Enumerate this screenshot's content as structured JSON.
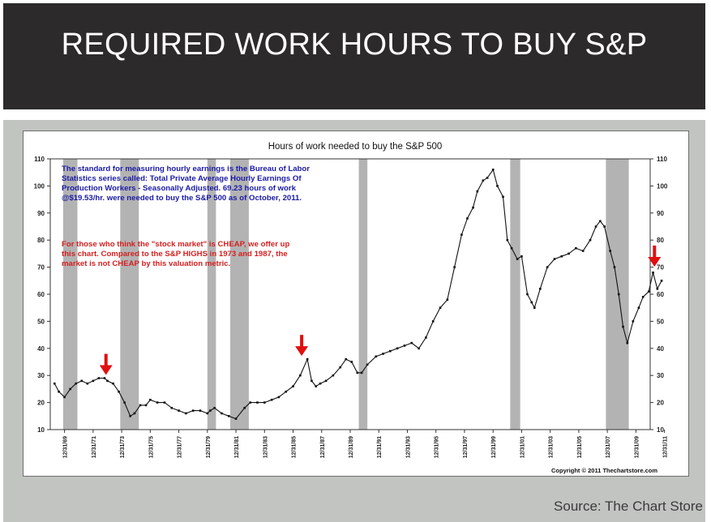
{
  "slide": {
    "title": "REQUIRED WORK HOURS TO BUY S&P",
    "source": "Source: The Chart Store"
  },
  "colors": {
    "banner": "#2d2a2b",
    "panel": "#c2c4c2",
    "recession": "#b3b3b3",
    "note_blue": "#1a1aa6",
    "note_red": "#d42020",
    "arrow": "#e01010",
    "line": "#111111"
  },
  "chart_data": {
    "type": "line",
    "title": "Hours of work needed to buy the S&P 500",
    "ylim": [
      10,
      110
    ],
    "xlim": [
      1969.0,
      2011.0
    ],
    "y_ticks": [
      10,
      20,
      30,
      40,
      50,
      60,
      70,
      80,
      90,
      100,
      110
    ],
    "x_tick_labels": [
      "12/31/69",
      "12/31/71",
      "12/31/73",
      "12/31/75",
      "12/31/77",
      "12/31/79",
      "12/31/81",
      "12/31/83",
      "12/31/85",
      "12/31/87",
      "12/31/89",
      "12/31/91",
      "12/31/93",
      "12/31/95",
      "12/31/97",
      "12/31/99",
      "12/31/01",
      "12/31/03",
      "12/31/05",
      "12/31/07",
      "12/31/09",
      "12/31/11"
    ],
    "x_tick_years": [
      1970,
      1972,
      1974,
      1976,
      1978,
      1980,
      1982,
      1984,
      1986,
      1988,
      1990,
      1992,
      1994,
      1996,
      1998,
      2000,
      2002,
      2004,
      2006,
      2008,
      2010,
      2012
    ],
    "recessions": [
      [
        1969.9,
        1970.9
      ],
      [
        1973.9,
        1975.2
      ],
      [
        1980.0,
        1980.6
      ],
      [
        1981.6,
        1982.9
      ],
      [
        1990.6,
        1991.2
      ],
      [
        2001.2,
        2001.9
      ],
      [
        2007.9,
        2009.5
      ]
    ],
    "series": [
      {
        "x": [
          1969.3,
          1969.6,
          1970.0,
          1970.4,
          1970.8,
          1971.2,
          1971.6,
          1972.0,
          1972.4,
          1972.8,
          1973.0,
          1973.4,
          1973.8,
          1974.2,
          1974.6,
          1974.9,
          1975.3,
          1975.7,
          1976.0,
          1976.5,
          1977.0,
          1977.5,
          1978.0,
          1978.5,
          1979.0,
          1979.5,
          1980.0,
          1980.2,
          1980.5,
          1981.0,
          1981.5,
          1982.0,
          1982.6,
          1983.0,
          1983.5,
          1984.0,
          1984.5,
          1985.0,
          1985.5,
          1986.0,
          1986.5,
          1987.0,
          1987.3,
          1987.6,
          1987.9,
          1988.3,
          1988.8,
          1989.3,
          1989.7,
          1990.1,
          1990.5,
          1990.8,
          1991.2,
          1991.8,
          1992.3,
          1992.8,
          1993.3,
          1993.8,
          1994.3,
          1994.8,
          1995.3,
          1995.8,
          1996.3,
          1996.8,
          1997.3,
          1997.8,
          1998.2,
          1998.6,
          1998.9,
          1999.3,
          1999.6,
          2000.0,
          2000.3,
          2000.7,
          2001.0,
          2001.3,
          2001.7,
          2002.0,
          2002.4,
          2002.7,
          2002.9,
          2003.3,
          2003.8,
          2004.3,
          2004.8,
          2005.3,
          2005.8,
          2006.3,
          2006.8,
          2007.2,
          2007.5,
          2007.8,
          2008.2,
          2008.5,
          2008.8,
          2009.1,
          2009.4,
          2009.8,
          2010.2,
          2010.5,
          2010.9,
          2011.2,
          2011.5,
          2011.8
        ],
        "y": [
          27,
          24,
          22,
          25,
          27,
          28,
          27,
          28,
          29,
          29,
          28,
          27,
          24,
          20,
          15,
          16,
          19,
          19,
          21,
          20,
          20,
          18,
          17,
          16,
          17,
          17,
          16,
          17,
          18,
          16,
          15,
          14,
          18,
          20,
          20,
          20,
          21,
          22,
          24,
          26,
          30,
          36,
          28,
          26,
          27,
          28,
          30,
          33,
          36,
          35,
          31,
          31,
          34,
          37,
          38,
          39,
          40,
          41,
          42,
          40,
          44,
          50,
          55,
          58,
          70,
          82,
          88,
          92,
          98,
          102,
          103,
          106,
          100,
          96,
          80,
          77,
          73,
          74,
          60,
          57,
          55,
          62,
          70,
          73,
          74,
          75,
          77,
          76,
          80,
          85,
          87,
          85,
          76,
          70,
          60,
          48,
          42,
          50,
          55,
          59,
          61,
          68,
          62,
          65
        ]
      }
    ],
    "annotations": {
      "note_blue": [
        "The standard for measuring hourly earnings is the Bureau of Labor",
        "Statistics series called:  Total Private Average Hourly Earnings Of",
        "Production Workers - Seasonally Adjusted.  69.23 hours of work",
        "@$19.53/hr. were needed to buy the S&P 500 as of October, 2011."
      ],
      "note_red": [
        "For those who think the \"stock market\" is CHEAP, we offer up",
        "this chart.  Compared to the S&P HIGHS in 1973 and 1987, the",
        "market is not CHEAP by this valuation metric."
      ],
      "copyright": "Copyright © 2011 Thechartstore.com",
      "arrows": [
        {
          "x": 1972.9,
          "y": 29
        },
        {
          "x": 1986.6,
          "y": 36
        },
        {
          "x": 2011.3,
          "y": 69
        }
      ]
    }
  }
}
